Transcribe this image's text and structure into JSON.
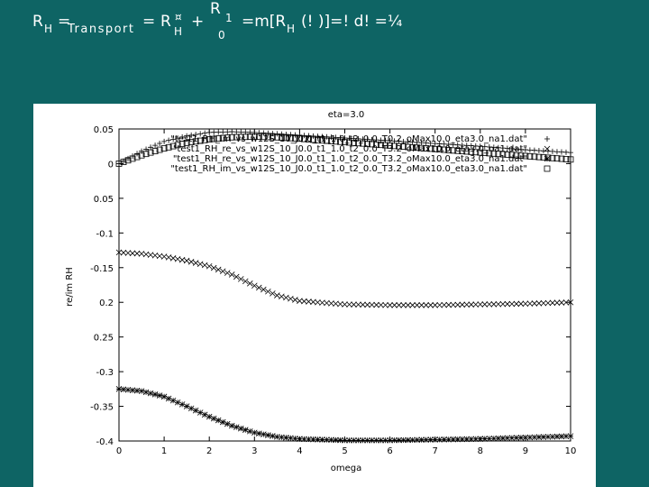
{
  "formula": {
    "r": "R",
    "h_sub": "H",
    "eq1": "=",
    "transport_sub": "Transport",
    "eq2": "=",
    "r2": "R",
    "h_sup": "¤",
    "h_sub2": "H",
    "plus": "+",
    "integral_upper": "R",
    "integral_sup": "1",
    "integral_lower": "0",
    "tail_a": "=m[R",
    "tail_h": "H",
    "tail_b": "(! )]=!  d! =¼"
  },
  "chart_data": {
    "type": "scatter",
    "title": "eta=3.0",
    "xlabel": "omega",
    "ylabel": "re/im RH",
    "xlim": [
      0,
      10
    ],
    "ylim": [
      -0.4,
      0.05
    ],
    "xticks": [
      {
        "v": 0,
        "label": "0"
      },
      {
        "v": 1,
        "label": "1"
      },
      {
        "v": 2,
        "label": "2"
      },
      {
        "v": 3,
        "label": "3"
      },
      {
        "v": 4,
        "label": "4"
      },
      {
        "v": 5,
        "label": "5"
      },
      {
        "v": 6,
        "label": "6"
      },
      {
        "v": 7,
        "label": "7"
      },
      {
        "v": 8,
        "label": "8"
      },
      {
        "v": 9,
        "label": "9"
      },
      {
        "v": 10,
        "label": "10"
      }
    ],
    "yticks": [
      {
        "v": 0.05,
        "label": "0.05"
      },
      {
        "v": 0,
        "label": "0"
      },
      {
        "v": -0.05,
        "label": "0.05"
      },
      {
        "v": -0.1,
        "label": "-0.1"
      },
      {
        "v": -0.15,
        "label": "-0.15"
      },
      {
        "v": -0.2,
        "label": "0.2"
      },
      {
        "v": -0.25,
        "label": "0.25"
      },
      {
        "v": -0.3,
        "label": "-0.3"
      },
      {
        "v": -0.35,
        "label": "-0.35"
      },
      {
        "v": -0.4,
        "label": "-0.4"
      }
    ],
    "grid": false,
    "legend_position": "top-right",
    "series": [
      {
        "name": "\"test1_RH_im_vs_w12S_10_J0.0_t1_1.0_t2_0.0_T0.2_oMax10.0_eta3.0_na1.dat\"",
        "marker": "plus",
        "x": [
          0,
          0.5,
          1,
          1.5,
          2,
          2.5,
          3,
          3.5,
          4,
          5,
          6,
          7,
          8,
          9,
          10
        ],
        "y": [
          0.0,
          0.018,
          0.032,
          0.04,
          0.045,
          0.046,
          0.045,
          0.043,
          0.041,
          0.037,
          0.033,
          0.029,
          0.025,
          0.02,
          0.016
        ]
      },
      {
        "name": "\"test1_RH_re_vs_w12S_10_J0.0_t1_1.0_t2_0.0_T3.2_oMax10.0_eta3.0_na1.dat\"",
        "marker": "cross",
        "x": [
          0,
          0.5,
          1,
          1.5,
          2,
          2.5,
          3,
          3.5,
          4,
          5,
          6,
          7,
          8,
          9,
          10
        ],
        "y": [
          -0.128,
          -0.13,
          -0.134,
          -0.14,
          -0.148,
          -0.16,
          -0.176,
          -0.19,
          -0.198,
          -0.203,
          -0.204,
          -0.204,
          -0.203,
          -0.202,
          -0.2
        ]
      },
      {
        "name": "\"test1_RH_re_vs_w12S_10_J0.0_t1_1.0_t2_0.0_T3.2_oMax10.0_eta3.0_na1.dat\"",
        "marker": "star",
        "x": [
          0,
          0.5,
          1,
          1.5,
          2,
          2.5,
          3,
          3.5,
          4,
          4.5,
          5,
          6,
          7,
          8,
          9,
          10
        ],
        "y": [
          -0.325,
          -0.328,
          -0.336,
          -0.35,
          -0.365,
          -0.378,
          -0.388,
          -0.394,
          -0.397,
          -0.398,
          -0.399,
          -0.399,
          -0.398,
          -0.397,
          -0.395,
          -0.393
        ]
      },
      {
        "name": "\"test1_RH_im_vs_w12S_10_J0.0_t1_1.0_t2_0.0_T3.2_oMax10.0_eta3.0_na1.dat\"",
        "marker": "box",
        "x": [
          0,
          0.5,
          1,
          1.5,
          2,
          2.5,
          3,
          3.5,
          4,
          5,
          6,
          7,
          8,
          9,
          10
        ],
        "y": [
          0.0,
          0.012,
          0.022,
          0.03,
          0.035,
          0.038,
          0.039,
          0.038,
          0.036,
          0.031,
          0.026,
          0.021,
          0.016,
          0.011,
          0.006
        ]
      }
    ]
  }
}
